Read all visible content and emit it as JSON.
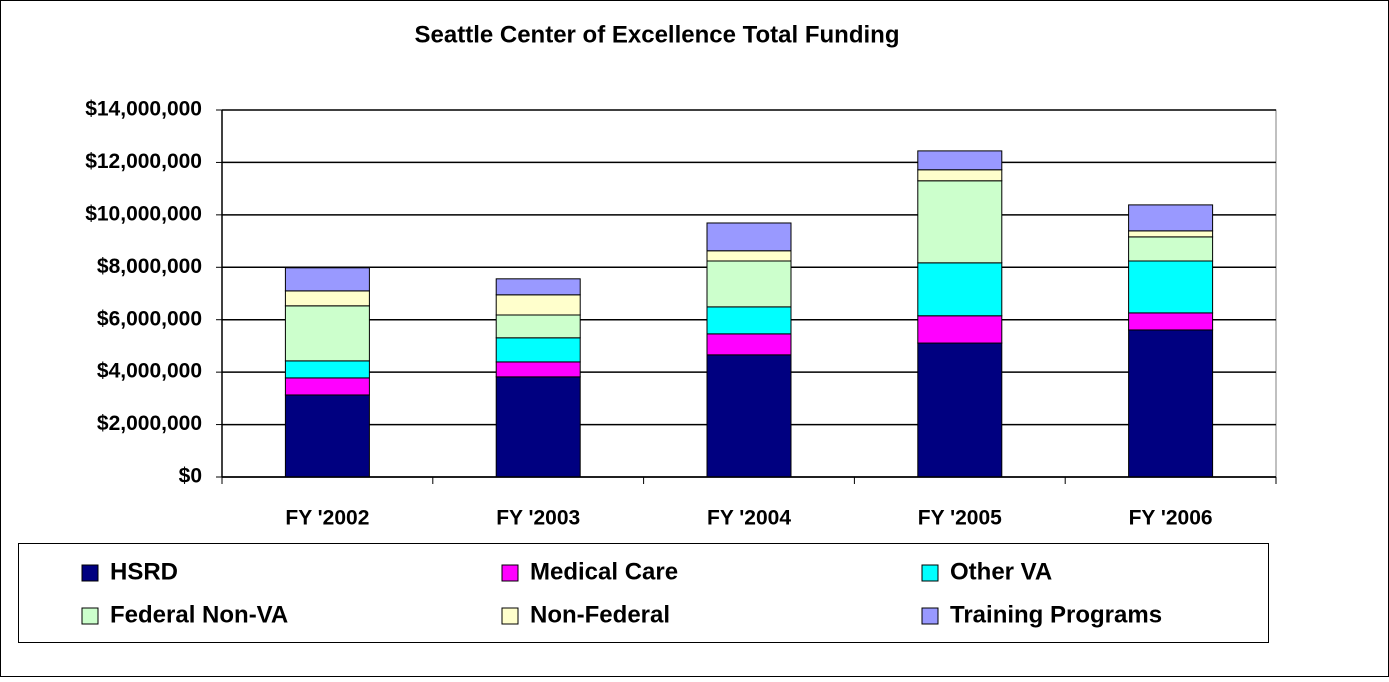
{
  "chart_data": {
    "type": "stacked-bar",
    "title": "Seattle Center of Excellence Total Funding",
    "categories": [
      "FY '2002",
      "FY '2003",
      "FY '2004",
      "FY '2005",
      "FY '2006"
    ],
    "series": [
      {
        "name": "HSRD",
        "color": "#000080",
        "values": [
          3130000,
          3820000,
          4660000,
          5110000,
          5610000
        ]
      },
      {
        "name": "Medical Care",
        "color": "#ff00ff",
        "values": [
          650000,
          570000,
          800000,
          1040000,
          650000
        ]
      },
      {
        "name": "Other VA",
        "color": "#00ffff",
        "values": [
          650000,
          920000,
          1030000,
          2020000,
          1980000
        ]
      },
      {
        "name": "Federal Non-VA",
        "color": "#ccffcc",
        "values": [
          2100000,
          870000,
          1750000,
          3130000,
          920000
        ]
      },
      {
        "name": "Non-Federal",
        "color": "#ffffcc",
        "values": [
          570000,
          770000,
          390000,
          420000,
          230000
        ]
      },
      {
        "name": "Training Programs",
        "color": "#9999ff",
        "values": [
          880000,
          610000,
          1060000,
          720000,
          990000
        ]
      }
    ],
    "ylim": [
      0,
      14000000
    ],
    "yticks": [
      {
        "value": 0,
        "label": "$0"
      },
      {
        "value": 2000000,
        "label": "$2,000,000"
      },
      {
        "value": 4000000,
        "label": "$4,000,000"
      },
      {
        "value": 6000000,
        "label": "$6,000,000"
      },
      {
        "value": 8000000,
        "label": "$8,000,000"
      },
      {
        "value": 10000000,
        "label": "$10,000,000"
      },
      {
        "value": 12000000,
        "label": "$12,000,000"
      },
      {
        "value": 14000000,
        "label": "$14,000,000"
      }
    ],
    "grid": true,
    "legend": "bottom"
  }
}
